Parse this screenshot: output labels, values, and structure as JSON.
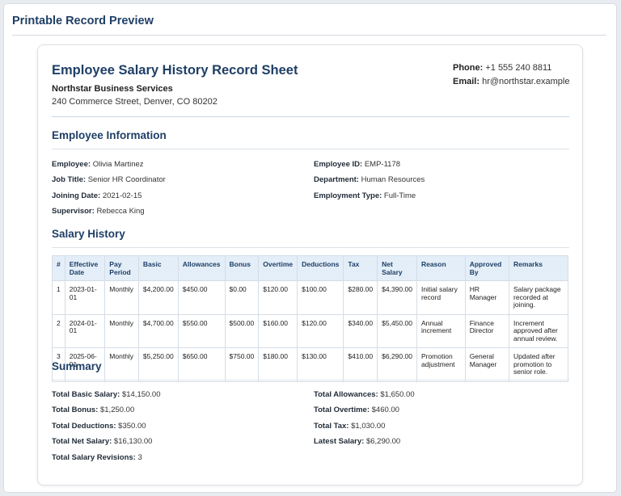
{
  "preview_title": "Printable Record Preview",
  "document": {
    "title": "Employee Salary History Record Sheet",
    "company": "Northstar Business Services",
    "address": "240 Commerce Street, Denver, CO 80202",
    "phone_label": "Phone:",
    "phone": "+1 555 240 8811",
    "email_label": "Email:",
    "email": "hr@northstar.example"
  },
  "employee_info": {
    "section_title": "Employee Information",
    "fields": [
      {
        "label": "Employee:",
        "value": "Olivia Martinez"
      },
      {
        "label": "Employee ID:",
        "value": "EMP-1178"
      },
      {
        "label": "Job Title:",
        "value": "Senior HR Coordinator"
      },
      {
        "label": "Department:",
        "value": "Human Resources"
      },
      {
        "label": "Joining Date:",
        "value": "2021-02-15"
      },
      {
        "label": "Employment Type:",
        "value": "Full-Time"
      },
      {
        "label": "Supervisor:",
        "value": "Rebecca King"
      }
    ]
  },
  "salary_history": {
    "section_title": "Salary History",
    "columns": [
      "#",
      "Effective Date",
      "Pay Period",
      "Basic",
      "Allowances",
      "Bonus",
      "Overtime",
      "Deductions",
      "Tax",
      "Net Salary",
      "Reason",
      "Approved By",
      "Remarks"
    ],
    "rows": [
      [
        "1",
        "2023-01-01",
        "Monthly",
        "$4,200.00",
        "$450.00",
        "$0.00",
        "$120.00",
        "$100.00",
        "$280.00",
        "$4,390.00",
        "Initial salary record",
        "HR Manager",
        "Salary package recorded at joining."
      ],
      [
        "2",
        "2024-01-01",
        "Monthly",
        "$4,700.00",
        "$550.00",
        "$500.00",
        "$160.00",
        "$120.00",
        "$340.00",
        "$5,450.00",
        "Annual increment",
        "Finance Director",
        "Increment approved after annual review."
      ],
      [
        "3",
        "2025-06-01",
        "Monthly",
        "$5,250.00",
        "$650.00",
        "$750.00",
        "$180.00",
        "$130.00",
        "$410.00",
        "$6,290.00",
        "Promotion adjustment",
        "General Manager",
        "Updated after promotion to senior role."
      ]
    ]
  },
  "summary": {
    "section_title": "Summary",
    "fields": [
      {
        "label": "Total Basic Salary:",
        "value": "$14,150.00"
      },
      {
        "label": "Total Allowances:",
        "value": "$1,650.00"
      },
      {
        "label": "Total Bonus:",
        "value": "$1,250.00"
      },
      {
        "label": "Total Overtime:",
        "value": "$460.00"
      },
      {
        "label": "Total Deductions:",
        "value": "$350.00"
      },
      {
        "label": "Total Tax:",
        "value": "$1,030.00"
      },
      {
        "label": "Total Net Salary:",
        "value": "$16,130.00"
      },
      {
        "label": "Latest Salary:",
        "value": "$6,290.00"
      },
      {
        "label": "Total Salary Revisions:",
        "value": "3"
      }
    ]
  }
}
